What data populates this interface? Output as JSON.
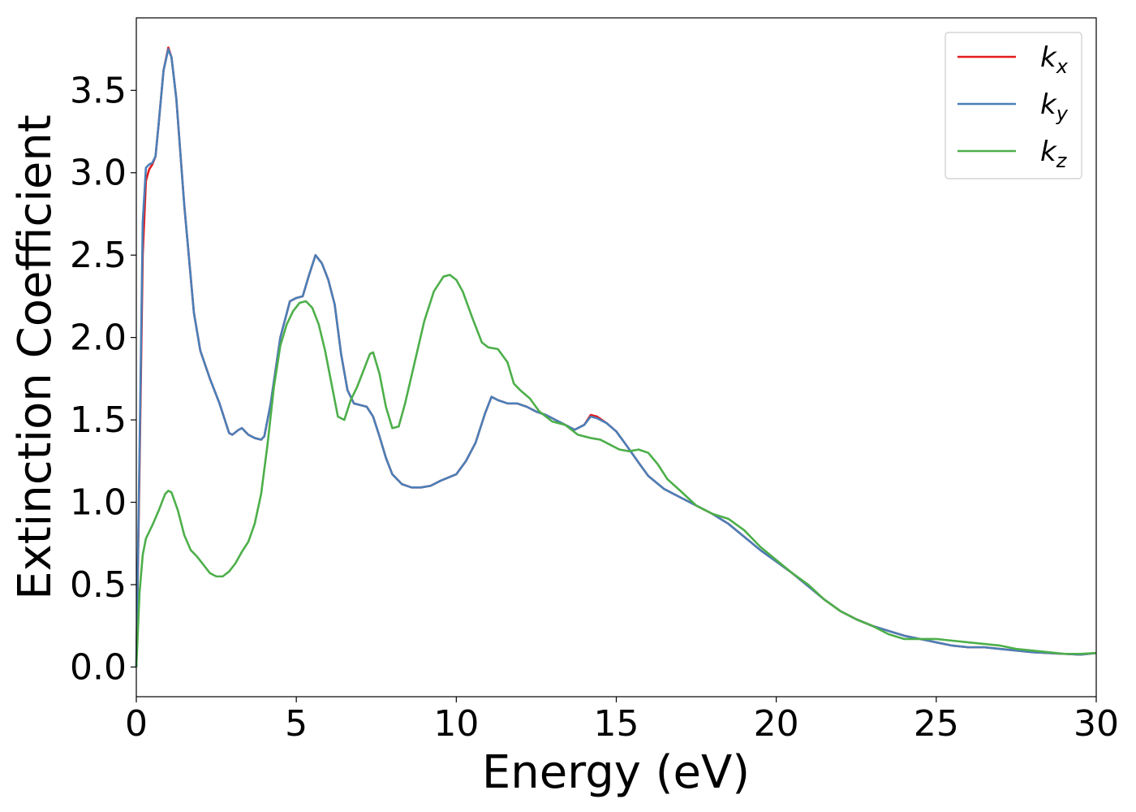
{
  "chart_data": {
    "type": "line",
    "xlabel": "Energy (eV)",
    "ylabel": "Extinction Coefficient",
    "xlim": [
      0,
      30
    ],
    "ylim": [
      -0.18,
      3.94
    ],
    "xticks": [
      0,
      5,
      10,
      15,
      20,
      25,
      30
    ],
    "xtick_labels": [
      "0",
      "5",
      "10",
      "15",
      "20",
      "25",
      "30"
    ],
    "yticks": [
      0.0,
      0.5,
      1.0,
      1.5,
      2.0,
      2.5,
      3.0,
      3.5
    ],
    "ytick_labels": [
      "0.0",
      "0.5",
      "1.0",
      "1.5",
      "2.0",
      "2.5",
      "3.0",
      "3.5"
    ],
    "grid": false,
    "legend_position": "top-right",
    "series": [
      {
        "name": "k",
        "subscript": "x",
        "color": "#e41a1c",
        "points": [
          [
            0,
            0
          ],
          [
            0.1,
            1.2
          ],
          [
            0.2,
            2.5
          ],
          [
            0.3,
            2.95
          ],
          [
            0.4,
            3.02
          ],
          [
            0.5,
            3.05
          ],
          [
            0.6,
            3.1
          ],
          [
            0.7,
            3.3
          ],
          [
            0.85,
            3.62
          ],
          [
            1.0,
            3.76
          ],
          [
            1.1,
            3.7
          ],
          [
            1.25,
            3.45
          ],
          [
            1.5,
            2.8
          ],
          [
            1.8,
            2.15
          ],
          [
            2.0,
            1.92
          ],
          [
            2.3,
            1.75
          ],
          [
            2.6,
            1.6
          ],
          [
            2.9,
            1.42
          ],
          [
            3.0,
            1.41
          ],
          [
            3.2,
            1.44
          ],
          [
            3.3,
            1.45
          ],
          [
            3.5,
            1.41
          ],
          [
            3.7,
            1.39
          ],
          [
            3.9,
            1.38
          ],
          [
            4.0,
            1.4
          ],
          [
            4.2,
            1.6
          ],
          [
            4.5,
            2.0
          ],
          [
            4.8,
            2.22
          ],
          [
            5.0,
            2.24
          ],
          [
            5.2,
            2.25
          ],
          [
            5.4,
            2.38
          ],
          [
            5.6,
            2.5
          ],
          [
            5.8,
            2.45
          ],
          [
            6.0,
            2.35
          ],
          [
            6.2,
            2.2
          ],
          [
            6.4,
            1.9
          ],
          [
            6.6,
            1.68
          ],
          [
            6.8,
            1.6
          ],
          [
            7.0,
            1.59
          ],
          [
            7.2,
            1.58
          ],
          [
            7.4,
            1.52
          ],
          [
            7.6,
            1.4
          ],
          [
            7.8,
            1.27
          ],
          [
            8.0,
            1.17
          ],
          [
            8.3,
            1.11
          ],
          [
            8.6,
            1.09
          ],
          [
            8.9,
            1.09
          ],
          [
            9.2,
            1.1
          ],
          [
            9.5,
            1.13
          ],
          [
            10.0,
            1.17
          ],
          [
            10.3,
            1.25
          ],
          [
            10.6,
            1.36
          ],
          [
            10.9,
            1.54
          ],
          [
            11.1,
            1.64
          ],
          [
            11.3,
            1.62
          ],
          [
            11.6,
            1.6
          ],
          [
            11.9,
            1.6
          ],
          [
            12.2,
            1.58
          ],
          [
            12.5,
            1.55
          ],
          [
            12.8,
            1.53
          ],
          [
            13.1,
            1.5
          ],
          [
            13.4,
            1.47
          ],
          [
            13.7,
            1.44
          ],
          [
            14.0,
            1.47
          ],
          [
            14.2,
            1.53
          ],
          [
            14.4,
            1.52
          ],
          [
            14.7,
            1.48
          ],
          [
            15.0,
            1.43
          ],
          [
            15.3,
            1.35
          ],
          [
            15.7,
            1.24
          ],
          [
            16.0,
            1.16
          ],
          [
            16.5,
            1.08
          ],
          [
            17.0,
            1.03
          ],
          [
            17.5,
            0.98
          ],
          [
            18.0,
            0.93
          ],
          [
            18.5,
            0.87
          ],
          [
            19.0,
            0.79
          ],
          [
            19.5,
            0.71
          ],
          [
            20.0,
            0.64
          ],
          [
            20.5,
            0.57
          ],
          [
            21.0,
            0.49
          ],
          [
            21.5,
            0.41
          ],
          [
            22.0,
            0.34
          ],
          [
            22.5,
            0.29
          ],
          [
            23.0,
            0.25
          ],
          [
            23.5,
            0.22
          ],
          [
            24.0,
            0.19
          ],
          [
            24.5,
            0.17
          ],
          [
            25.0,
            0.15
          ],
          [
            25.5,
            0.13
          ],
          [
            26.0,
            0.12
          ],
          [
            26.5,
            0.12
          ],
          [
            27.0,
            0.11
          ],
          [
            27.5,
            0.1
          ],
          [
            28.0,
            0.09
          ],
          [
            28.5,
            0.085
          ],
          [
            29.0,
            0.08
          ],
          [
            29.5,
            0.075
          ],
          [
            30.0,
            0.085
          ]
        ]
      },
      {
        "name": "k",
        "subscript": "y",
        "color": "#4a7fb8",
        "points": [
          [
            0,
            0
          ],
          [
            0.1,
            1.3
          ],
          [
            0.2,
            2.7
          ],
          [
            0.3,
            3.03
          ],
          [
            0.4,
            3.05
          ],
          [
            0.5,
            3.06
          ],
          [
            0.6,
            3.1
          ],
          [
            0.7,
            3.3
          ],
          [
            0.85,
            3.62
          ],
          [
            1.0,
            3.75
          ],
          [
            1.1,
            3.7
          ],
          [
            1.25,
            3.45
          ],
          [
            1.5,
            2.8
          ],
          [
            1.8,
            2.15
          ],
          [
            2.0,
            1.92
          ],
          [
            2.3,
            1.75
          ],
          [
            2.6,
            1.6
          ],
          [
            2.9,
            1.42
          ],
          [
            3.0,
            1.41
          ],
          [
            3.2,
            1.44
          ],
          [
            3.3,
            1.45
          ],
          [
            3.5,
            1.41
          ],
          [
            3.7,
            1.39
          ],
          [
            3.9,
            1.38
          ],
          [
            4.0,
            1.4
          ],
          [
            4.2,
            1.6
          ],
          [
            4.5,
            2.0
          ],
          [
            4.8,
            2.22
          ],
          [
            5.0,
            2.24
          ],
          [
            5.2,
            2.25
          ],
          [
            5.4,
            2.38
          ],
          [
            5.6,
            2.5
          ],
          [
            5.8,
            2.45
          ],
          [
            6.0,
            2.35
          ],
          [
            6.2,
            2.2
          ],
          [
            6.4,
            1.9
          ],
          [
            6.6,
            1.68
          ],
          [
            6.8,
            1.6
          ],
          [
            7.0,
            1.59
          ],
          [
            7.2,
            1.58
          ],
          [
            7.4,
            1.52
          ],
          [
            7.6,
            1.4
          ],
          [
            7.8,
            1.27
          ],
          [
            8.0,
            1.17
          ],
          [
            8.3,
            1.11
          ],
          [
            8.6,
            1.09
          ],
          [
            8.9,
            1.09
          ],
          [
            9.2,
            1.1
          ],
          [
            9.5,
            1.13
          ],
          [
            10.0,
            1.17
          ],
          [
            10.3,
            1.25
          ],
          [
            10.6,
            1.36
          ],
          [
            10.9,
            1.54
          ],
          [
            11.1,
            1.64
          ],
          [
            11.3,
            1.62
          ],
          [
            11.6,
            1.6
          ],
          [
            11.9,
            1.6
          ],
          [
            12.2,
            1.58
          ],
          [
            12.5,
            1.55
          ],
          [
            12.8,
            1.53
          ],
          [
            13.1,
            1.5
          ],
          [
            13.4,
            1.47
          ],
          [
            13.7,
            1.44
          ],
          [
            14.0,
            1.47
          ],
          [
            14.2,
            1.52
          ],
          [
            14.4,
            1.51
          ],
          [
            14.7,
            1.48
          ],
          [
            15.0,
            1.43
          ],
          [
            15.3,
            1.35
          ],
          [
            15.7,
            1.24
          ],
          [
            16.0,
            1.16
          ],
          [
            16.5,
            1.08
          ],
          [
            17.0,
            1.03
          ],
          [
            17.5,
            0.98
          ],
          [
            18.0,
            0.93
          ],
          [
            18.5,
            0.87
          ],
          [
            19.0,
            0.79
          ],
          [
            19.5,
            0.71
          ],
          [
            20.0,
            0.64
          ],
          [
            20.5,
            0.57
          ],
          [
            21.0,
            0.49
          ],
          [
            21.5,
            0.41
          ],
          [
            22.0,
            0.34
          ],
          [
            22.5,
            0.29
          ],
          [
            23.0,
            0.25
          ],
          [
            23.5,
            0.22
          ],
          [
            24.0,
            0.19
          ],
          [
            24.5,
            0.17
          ],
          [
            25.0,
            0.15
          ],
          [
            25.5,
            0.13
          ],
          [
            26.0,
            0.12
          ],
          [
            26.5,
            0.12
          ],
          [
            27.0,
            0.11
          ],
          [
            27.5,
            0.1
          ],
          [
            28.0,
            0.09
          ],
          [
            28.5,
            0.085
          ],
          [
            29.0,
            0.08
          ],
          [
            29.5,
            0.075
          ],
          [
            30.0,
            0.085
          ]
        ]
      },
      {
        "name": "k",
        "subscript": "z",
        "color": "#4daf4a",
        "points": [
          [
            0,
            0
          ],
          [
            0.1,
            0.45
          ],
          [
            0.2,
            0.68
          ],
          [
            0.3,
            0.78
          ],
          [
            0.5,
            0.86
          ],
          [
            0.7,
            0.95
          ],
          [
            0.9,
            1.05
          ],
          [
            1.0,
            1.07
          ],
          [
            1.1,
            1.06
          ],
          [
            1.3,
            0.95
          ],
          [
            1.5,
            0.8
          ],
          [
            1.7,
            0.71
          ],
          [
            1.9,
            0.67
          ],
          [
            2.1,
            0.62
          ],
          [
            2.3,
            0.57
          ],
          [
            2.5,
            0.55
          ],
          [
            2.7,
            0.55
          ],
          [
            2.9,
            0.58
          ],
          [
            3.1,
            0.63
          ],
          [
            3.3,
            0.7
          ],
          [
            3.5,
            0.76
          ],
          [
            3.7,
            0.87
          ],
          [
            3.9,
            1.05
          ],
          [
            4.1,
            1.35
          ],
          [
            4.3,
            1.7
          ],
          [
            4.5,
            1.95
          ],
          [
            4.7,
            2.08
          ],
          [
            4.9,
            2.16
          ],
          [
            5.1,
            2.21
          ],
          [
            5.3,
            2.22
          ],
          [
            5.5,
            2.18
          ],
          [
            5.7,
            2.08
          ],
          [
            5.9,
            1.92
          ],
          [
            6.1,
            1.72
          ],
          [
            6.3,
            1.52
          ],
          [
            6.5,
            1.5
          ],
          [
            6.7,
            1.62
          ],
          [
            6.9,
            1.7
          ],
          [
            7.1,
            1.8
          ],
          [
            7.3,
            1.9
          ],
          [
            7.4,
            1.91
          ],
          [
            7.6,
            1.78
          ],
          [
            7.8,
            1.58
          ],
          [
            8.0,
            1.45
          ],
          [
            8.2,
            1.46
          ],
          [
            8.4,
            1.6
          ],
          [
            8.7,
            1.85
          ],
          [
            9.0,
            2.1
          ],
          [
            9.3,
            2.28
          ],
          [
            9.6,
            2.37
          ],
          [
            9.8,
            2.38
          ],
          [
            10.0,
            2.35
          ],
          [
            10.2,
            2.28
          ],
          [
            10.5,
            2.12
          ],
          [
            10.8,
            1.97
          ],
          [
            11.0,
            1.94
          ],
          [
            11.3,
            1.93
          ],
          [
            11.6,
            1.85
          ],
          [
            11.8,
            1.72
          ],
          [
            12.0,
            1.68
          ],
          [
            12.3,
            1.63
          ],
          [
            12.6,
            1.55
          ],
          [
            13.0,
            1.49
          ],
          [
            13.4,
            1.47
          ],
          [
            13.8,
            1.41
          ],
          [
            14.2,
            1.39
          ],
          [
            14.5,
            1.38
          ],
          [
            14.8,
            1.35
          ],
          [
            15.1,
            1.32
          ],
          [
            15.4,
            1.31
          ],
          [
            15.7,
            1.32
          ],
          [
            16.0,
            1.3
          ],
          [
            16.3,
            1.23
          ],
          [
            16.6,
            1.14
          ],
          [
            17.0,
            1.07
          ],
          [
            17.5,
            0.98
          ],
          [
            18.0,
            0.93
          ],
          [
            18.5,
            0.9
          ],
          [
            19.0,
            0.83
          ],
          [
            19.5,
            0.73
          ],
          [
            20.0,
            0.65
          ],
          [
            20.5,
            0.57
          ],
          [
            21.0,
            0.5
          ],
          [
            21.5,
            0.41
          ],
          [
            22.0,
            0.34
          ],
          [
            22.5,
            0.29
          ],
          [
            23.0,
            0.25
          ],
          [
            23.5,
            0.2
          ],
          [
            24.0,
            0.17
          ],
          [
            24.5,
            0.17
          ],
          [
            25.0,
            0.17
          ],
          [
            25.5,
            0.16
          ],
          [
            26.0,
            0.15
          ],
          [
            26.5,
            0.14
          ],
          [
            27.0,
            0.13
          ],
          [
            27.5,
            0.11
          ],
          [
            28.0,
            0.1
          ],
          [
            28.5,
            0.09
          ],
          [
            29.0,
            0.08
          ],
          [
            29.5,
            0.08
          ],
          [
            30.0,
            0.085
          ]
        ]
      }
    ]
  }
}
